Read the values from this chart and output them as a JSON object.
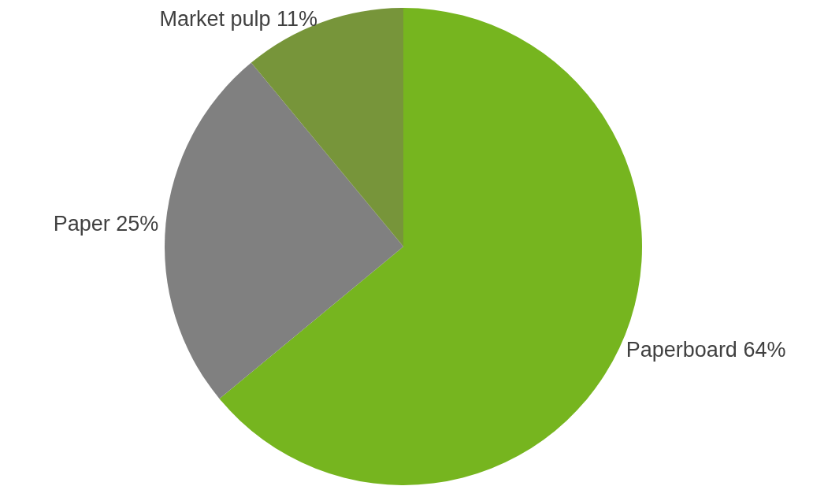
{
  "chart_data": {
    "type": "pie",
    "categories": [
      "Paperboard",
      "Paper",
      "Market pulp"
    ],
    "values": [
      64,
      25,
      11
    ],
    "value_labels": [
      "64%",
      "25%",
      "11%"
    ],
    "colors": [
      "#76b51f",
      "#808080",
      "#77953a"
    ],
    "legend": false
  }
}
